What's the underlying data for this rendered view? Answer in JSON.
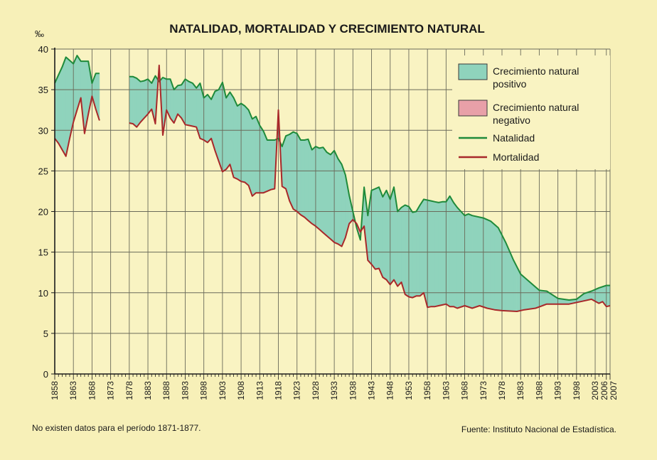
{
  "chart_data": {
    "type": "line",
    "title": "NATALIDAD, MORTALIDAD Y CRECIMIENTO NATURAL",
    "ylabel": "‰",
    "xlabel": "",
    "ylim": [
      0,
      40
    ],
    "yticks": [
      0,
      5,
      10,
      15,
      20,
      25,
      30,
      35,
      40
    ],
    "xticks": [
      "1858",
      "1863",
      "1868",
      "1873",
      "1878",
      "1883",
      "1888",
      "1893",
      "1898",
      "1903",
      "1908",
      "1913",
      "1918",
      "1923",
      "1928",
      "1933",
      "1938",
      "1943",
      "1948",
      "1953",
      "1958",
      "1963",
      "1968",
      "1973",
      "1978",
      "1983",
      "1988",
      "1993",
      "1998",
      "2003",
      "2006",
      "2007"
    ],
    "grid": true,
    "legend": [
      {
        "label": "Crecimiento natural positivo",
        "color": "#8fd3bc"
      },
      {
        "label": "Crecimiento natural negativo",
        "color": "#e8a0a8"
      },
      {
        "label": "Natalidad",
        "color": "#1f8a3a"
      },
      {
        "label": "Mortalidad",
        "color": "#a8282a"
      }
    ],
    "legend_position": "top-right",
    "note": "No existen datos para el período 1871-1877.",
    "source": "Fuente: Instituto Nacional de Estadística.",
    "series": [
      {
        "name": "Natalidad",
        "segments": [
          [
            [
              1858,
              35.8
            ],
            [
              1859,
              36.8
            ],
            [
              1860,
              37.8
            ],
            [
              1861,
              39.0
            ],
            [
              1862,
              38.6
            ],
            [
              1863,
              38.2
            ],
            [
              1864,
              39.2
            ],
            [
              1865,
              38.5
            ],
            [
              1866,
              38.5
            ],
            [
              1867,
              38.5
            ],
            [
              1868,
              35.8
            ],
            [
              1869,
              37.0
            ],
            [
              1870,
              37.0
            ]
          ],
          [
            [
              1878,
              36.6
            ],
            [
              1879,
              36.6
            ],
            [
              1880,
              36.4
            ],
            [
              1881,
              36.0
            ],
            [
              1882,
              36.1
            ],
            [
              1883,
              36.3
            ],
            [
              1884,
              35.8
            ],
            [
              1885,
              36.7
            ],
            [
              1886,
              36.0
            ],
            [
              1887,
              36.5
            ],
            [
              1888,
              36.3
            ],
            [
              1889,
              36.3
            ],
            [
              1890,
              35.0
            ],
            [
              1891,
              35.5
            ],
            [
              1892,
              35.6
            ],
            [
              1893,
              36.3
            ],
            [
              1894,
              36.0
            ],
            [
              1895,
              35.8
            ],
            [
              1896,
              35.2
            ],
            [
              1897,
              35.8
            ],
            [
              1898,
              34.0
            ],
            [
              1899,
              34.4
            ],
            [
              1900,
              33.8
            ],
            [
              1901,
              34.8
            ],
            [
              1902,
              35.0
            ],
            [
              1903,
              35.9
            ],
            [
              1904,
              34.0
            ],
            [
              1905,
              34.7
            ],
            [
              1906,
              34.0
            ],
            [
              1907,
              33.0
            ],
            [
              1908,
              33.3
            ],
            [
              1909,
              33.0
            ],
            [
              1910,
              32.5
            ],
            [
              1911,
              31.4
            ],
            [
              1912,
              31.7
            ],
            [
              1913,
              30.6
            ],
            [
              1914,
              29.9
            ],
            [
              1915,
              28.8
            ],
            [
              1916,
              28.8
            ],
            [
              1917,
              28.8
            ],
            [
              1918,
              29.0
            ],
            [
              1919,
              28.0
            ],
            [
              1920,
              29.3
            ],
            [
              1921,
              29.5
            ],
            [
              1922,
              29.8
            ],
            [
              1923,
              29.6
            ],
            [
              1924,
              28.8
            ],
            [
              1925,
              28.8
            ],
            [
              1926,
              28.9
            ],
            [
              1927,
              27.6
            ],
            [
              1928,
              28.0
            ],
            [
              1929,
              27.8
            ],
            [
              1930,
              27.9
            ],
            [
              1931,
              27.3
            ],
            [
              1932,
              27.0
            ],
            [
              1933,
              27.5
            ],
            [
              1934,
              26.5
            ],
            [
              1935,
              25.8
            ],
            [
              1936,
              24.5
            ],
            [
              1937,
              22.0
            ],
            [
              1938,
              20.0
            ],
            [
              1939,
              18.0
            ],
            [
              1940,
              16.5
            ],
            [
              1941,
              23.0
            ],
            [
              1942,
              19.5
            ],
            [
              1943,
              22.6
            ],
            [
              1944,
              22.8
            ],
            [
              1945,
              23.0
            ],
            [
              1946,
              21.8
            ],
            [
              1947,
              22.6
            ],
            [
              1948,
              21.5
            ],
            [
              1949,
              23.0
            ],
            [
              1950,
              20.0
            ],
            [
              1951,
              20.5
            ],
            [
              1952,
              20.8
            ],
            [
              1953,
              20.6
            ],
            [
              1954,
              19.9
            ],
            [
              1955,
              20.0
            ],
            [
              1956,
              20.8
            ],
            [
              1957,
              21.5
            ],
            [
              1958,
              21.4
            ],
            [
              1959,
              21.3
            ],
            [
              1960,
              21.2
            ],
            [
              1961,
              21.1
            ],
            [
              1962,
              21.2
            ],
            [
              1963,
              21.2
            ],
            [
              1964,
              21.9
            ],
            [
              1965,
              21.1
            ],
            [
              1966,
              20.5
            ],
            [
              1967,
              20.0
            ],
            [
              1968,
              19.5
            ],
            [
              1969,
              19.7
            ],
            [
              1970,
              19.5
            ],
            [
              1973,
              19.2
            ],
            [
              1975,
              18.8
            ],
            [
              1977,
              18.0
            ],
            [
              1979,
              16.2
            ],
            [
              1981,
              14.1
            ],
            [
              1983,
              12.3
            ],
            [
              1985,
              11.5
            ],
            [
              1988,
              10.3
            ],
            [
              1990,
              10.2
            ],
            [
              1993,
              9.3
            ],
            [
              1996,
              9.1
            ],
            [
              1998,
              9.2
            ],
            [
              2000,
              9.9
            ],
            [
              2002,
              10.2
            ],
            [
              2004,
              10.6
            ],
            [
              2006,
              10.9
            ],
            [
              2007,
              10.9
            ]
          ]
        ]
      },
      {
        "name": "Mortalidad",
        "segments": [
          [
            [
              1858,
              29.0
            ],
            [
              1859,
              28.4
            ],
            [
              1860,
              27.6
            ],
            [
              1861,
              26.8
            ],
            [
              1862,
              29.0
            ],
            [
              1863,
              31.0
            ],
            [
              1864,
              32.5
            ],
            [
              1865,
              34.0
            ],
            [
              1866,
              29.6
            ],
            [
              1867,
              32.0
            ],
            [
              1868,
              34.2
            ],
            [
              1869,
              32.6
            ],
            [
              1870,
              31.2
            ]
          ],
          [
            [
              1878,
              30.9
            ],
            [
              1879,
              30.8
            ],
            [
              1880,
              30.4
            ],
            [
              1881,
              31.0
            ],
            [
              1882,
              31.5
            ],
            [
              1883,
              32.0
            ],
            [
              1884,
              32.6
            ],
            [
              1885,
              30.8
            ],
            [
              1886,
              38.0
            ],
            [
              1887,
              29.4
            ],
            [
              1888,
              32.5
            ],
            [
              1889,
              31.5
            ],
            [
              1890,
              30.9
            ],
            [
              1891,
              32.0
            ],
            [
              1892,
              31.5
            ],
            [
              1893,
              30.7
            ],
            [
              1894,
              30.6
            ],
            [
              1895,
              30.5
            ],
            [
              1896,
              30.4
            ],
            [
              1897,
              29.0
            ],
            [
              1898,
              28.8
            ],
            [
              1899,
              28.5
            ],
            [
              1900,
              29.0
            ],
            [
              1901,
              27.5
            ],
            [
              1902,
              26.2
            ],
            [
              1903,
              24.9
            ],
            [
              1904,
              25.2
            ],
            [
              1905,
              25.8
            ],
            [
              1906,
              24.2
            ],
            [
              1907,
              24.0
            ],
            [
              1908,
              23.7
            ],
            [
              1909,
              23.6
            ],
            [
              1910,
              23.2
            ],
            [
              1911,
              21.9
            ],
            [
              1912,
              22.3
            ],
            [
              1913,
              22.3
            ],
            [
              1914,
              22.3
            ],
            [
              1915,
              22.5
            ],
            [
              1916,
              22.7
            ],
            [
              1917,
              22.8
            ],
            [
              1918,
              32.5
            ],
            [
              1919,
              23.1
            ],
            [
              1920,
              22.8
            ],
            [
              1921,
              21.3
            ],
            [
              1922,
              20.3
            ],
            [
              1923,
              20.0
            ],
            [
              1924,
              19.6
            ],
            [
              1925,
              19.3
            ],
            [
              1926,
              18.9
            ],
            [
              1927,
              18.5
            ],
            [
              1928,
              18.2
            ],
            [
              1929,
              17.8
            ],
            [
              1930,
              17.4
            ],
            [
              1931,
              17.0
            ],
            [
              1932,
              16.6
            ],
            [
              1933,
              16.2
            ],
            [
              1934,
              16.0
            ],
            [
              1935,
              15.7
            ],
            [
              1936,
              16.8
            ],
            [
              1937,
              18.5
            ],
            [
              1938,
              19.0
            ],
            [
              1939,
              18.5
            ],
            [
              1940,
              17.5
            ],
            [
              1941,
              18.2
            ],
            [
              1942,
              14.0
            ],
            [
              1943,
              13.5
            ],
            [
              1944,
              12.9
            ],
            [
              1945,
              13.0
            ],
            [
              1946,
              11.9
            ],
            [
              1947,
              11.6
            ],
            [
              1948,
              11.0
            ],
            [
              1949,
              11.6
            ],
            [
              1950,
              10.8
            ],
            [
              1951,
              11.3
            ],
            [
              1952,
              9.8
            ],
            [
              1953,
              9.5
            ],
            [
              1954,
              9.4
            ],
            [
              1955,
              9.6
            ],
            [
              1956,
              9.6
            ],
            [
              1957,
              10.0
            ],
            [
              1958,
              8.2
            ],
            [
              1959,
              8.3
            ],
            [
              1960,
              8.3
            ],
            [
              1961,
              8.4
            ],
            [
              1962,
              8.5
            ],
            [
              1963,
              8.6
            ],
            [
              1964,
              8.3
            ],
            [
              1965,
              8.3
            ],
            [
              1966,
              8.1
            ],
            [
              1968,
              8.4
            ],
            [
              1970,
              8.1
            ],
            [
              1972,
              8.4
            ],
            [
              1974,
              8.1
            ],
            [
              1976,
              7.9
            ],
            [
              1978,
              7.8
            ],
            [
              1982,
              7.7
            ],
            [
              1984,
              7.9
            ],
            [
              1987,
              8.1
            ],
            [
              1990,
              8.6
            ],
            [
              1993,
              8.6
            ],
            [
              1996,
              8.6
            ],
            [
              2000,
              9.0
            ],
            [
              2002,
              9.2
            ],
            [
              2004,
              8.7
            ],
            [
              2005,
              8.9
            ],
            [
              2006,
              8.3
            ],
            [
              2007,
              8.4
            ]
          ]
        ]
      }
    ]
  }
}
